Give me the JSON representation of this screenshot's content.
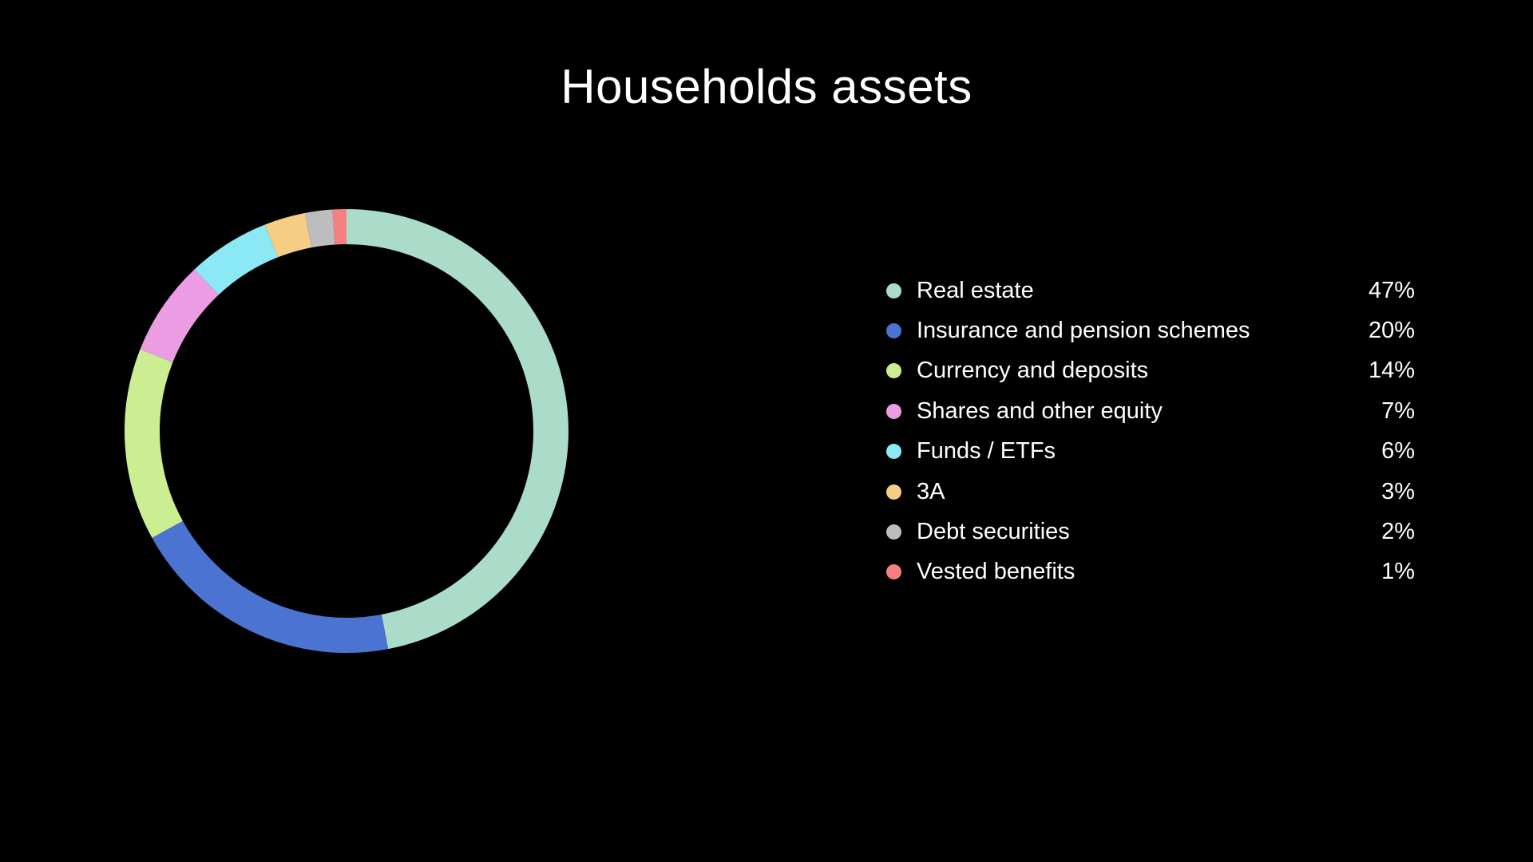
{
  "page": {
    "background_color": "#000000",
    "text_color": "#ffffff"
  },
  "chart_data": {
    "type": "pie",
    "subtype": "donut",
    "title": "Households assets",
    "start_angle_deg": -90,
    "direction": "clockwise",
    "legend_position": "right",
    "donut_mid_radius_px": 256,
    "donut_thickness_px": 44,
    "segments": [
      {
        "label": "Real estate",
        "value_pct": 47,
        "percent_label": "47%",
        "color": "#abdcc9"
      },
      {
        "label": "Insurance and pension schemes",
        "value_pct": 20,
        "percent_label": "20%",
        "color": "#4a73d2"
      },
      {
        "label": "Currency and deposits",
        "value_pct": 14,
        "percent_label": "14%",
        "color": "#cbee92"
      },
      {
        "label": "Shares and other equity",
        "value_pct": 7,
        "percent_label": "7%",
        "color": "#eb9ce2"
      },
      {
        "label": "Funds / ETFs",
        "value_pct": 6,
        "percent_label": "6%",
        "color": "#8ae9f5"
      },
      {
        "label": "3A",
        "value_pct": 3,
        "percent_label": "3%",
        "color": "#f6cd84"
      },
      {
        "label": "Debt securities",
        "value_pct": 2,
        "percent_label": "2%",
        "color": "#bdbdbd"
      },
      {
        "label": "Vested benefits",
        "value_pct": 1,
        "percent_label": "1%",
        "color": "#f58080"
      }
    ]
  }
}
